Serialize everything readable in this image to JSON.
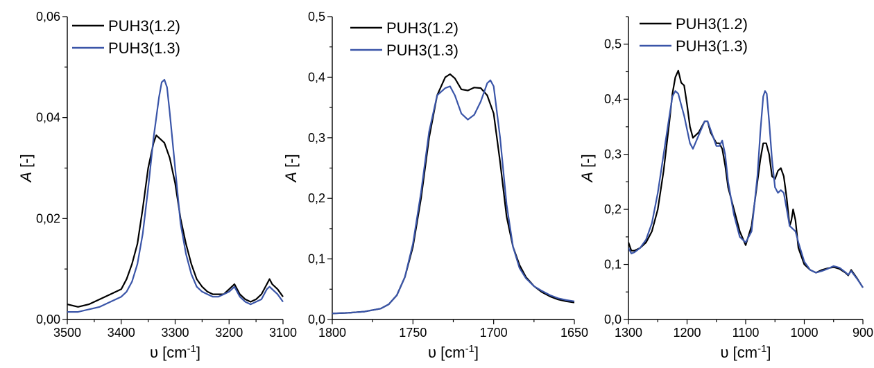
{
  "chart_data": [
    {
      "type": "line",
      "xlabel": "υ [cm⁻¹]",
      "ylabel": "A [-]",
      "xlim": [
        3500,
        3100
      ],
      "ylim": [
        0.0,
        0.06
      ],
      "xticks": [
        3500,
        3400,
        3300,
        3200,
        3100
      ],
      "xtick_labels": [
        "3500",
        "3400",
        "3300",
        "3200",
        "3100"
      ],
      "yticks": [
        0.0,
        0.02,
        0.04,
        0.06
      ],
      "ytick_labels": [
        "0,00",
        "0,02",
        "0,04",
        "0,06"
      ],
      "legend": "top-left",
      "series": [
        {
          "name": "PUH3(1.2)",
          "color": "#000000",
          "x": [
            3500,
            3480,
            3460,
            3440,
            3420,
            3400,
            3390,
            3380,
            3370,
            3360,
            3350,
            3340,
            3335,
            3330,
            3320,
            3310,
            3300,
            3290,
            3280,
            3270,
            3260,
            3250,
            3240,
            3230,
            3220,
            3210,
            3200,
            3190,
            3180,
            3170,
            3160,
            3150,
            3140,
            3130,
            3125,
            3120,
            3110,
            3100
          ],
          "values": [
            0.003,
            0.0025,
            0.003,
            0.004,
            0.005,
            0.006,
            0.008,
            0.011,
            0.015,
            0.022,
            0.03,
            0.035,
            0.0365,
            0.036,
            0.035,
            0.032,
            0.027,
            0.02,
            0.015,
            0.011,
            0.008,
            0.0065,
            0.0055,
            0.005,
            0.005,
            0.005,
            0.006,
            0.007,
            0.005,
            0.004,
            0.0035,
            0.004,
            0.005,
            0.007,
            0.008,
            0.007,
            0.006,
            0.0045
          ]
        },
        {
          "name": "PUH3(1.3)",
          "color": "#3a55a8",
          "x": [
            3500,
            3480,
            3460,
            3440,
            3420,
            3400,
            3390,
            3380,
            3370,
            3360,
            3350,
            3340,
            3330,
            3325,
            3320,
            3315,
            3310,
            3300,
            3290,
            3280,
            3270,
            3260,
            3250,
            3240,
            3230,
            3220,
            3210,
            3200,
            3190,
            3180,
            3170,
            3160,
            3150,
            3140,
            3130,
            3125,
            3120,
            3110,
            3100
          ],
          "values": [
            0.0015,
            0.0015,
            0.002,
            0.0025,
            0.0035,
            0.0045,
            0.0055,
            0.0075,
            0.011,
            0.017,
            0.026,
            0.036,
            0.044,
            0.047,
            0.0475,
            0.046,
            0.041,
            0.03,
            0.019,
            0.013,
            0.009,
            0.0065,
            0.0055,
            0.005,
            0.0045,
            0.0045,
            0.005,
            0.0055,
            0.0065,
            0.0045,
            0.0035,
            0.003,
            0.0035,
            0.004,
            0.006,
            0.0065,
            0.006,
            0.005,
            0.0035
          ]
        }
      ]
    },
    {
      "type": "line",
      "xlabel": "υ [cm⁻¹]",
      "ylabel": "A [-]",
      "xlim": [
        1800,
        1650
      ],
      "ylim": [
        0.0,
        0.5
      ],
      "xticks": [
        1800,
        1750,
        1700,
        1650
      ],
      "xtick_labels": [
        "1800",
        "1750",
        "1700",
        "1650"
      ],
      "yticks": [
        0.0,
        0.1,
        0.2,
        0.3,
        0.4,
        0.5
      ],
      "ytick_labels": [
        "0,0",
        "0,1",
        "0,2",
        "0,3",
        "0,4",
        "0,5"
      ],
      "legend": "top-left",
      "series": [
        {
          "name": "PUH3(1.2)",
          "color": "#000000",
          "x": [
            1800,
            1790,
            1780,
            1770,
            1765,
            1760,
            1755,
            1750,
            1745,
            1740,
            1735,
            1730,
            1727,
            1724,
            1720,
            1716,
            1712,
            1708,
            1704,
            1700,
            1696,
            1692,
            1688,
            1684,
            1680,
            1675,
            1670,
            1665,
            1660,
            1655,
            1650
          ],
          "values": [
            0.01,
            0.011,
            0.013,
            0.018,
            0.025,
            0.04,
            0.07,
            0.12,
            0.2,
            0.3,
            0.37,
            0.4,
            0.405,
            0.398,
            0.38,
            0.378,
            0.383,
            0.382,
            0.37,
            0.34,
            0.26,
            0.17,
            0.12,
            0.09,
            0.07,
            0.055,
            0.045,
            0.038,
            0.033,
            0.03,
            0.028
          ]
        },
        {
          "name": "PUH3(1.3)",
          "color": "#3a55a8",
          "x": [
            1800,
            1790,
            1780,
            1770,
            1765,
            1760,
            1755,
            1750,
            1745,
            1740,
            1735,
            1730,
            1727,
            1724,
            1720,
            1716,
            1712,
            1708,
            1704,
            1702,
            1700,
            1696,
            1692,
            1688,
            1684,
            1680,
            1675,
            1670,
            1665,
            1660,
            1655,
            1650
          ],
          "values": [
            0.01,
            0.011,
            0.013,
            0.018,
            0.025,
            0.04,
            0.07,
            0.125,
            0.21,
            0.31,
            0.37,
            0.382,
            0.385,
            0.37,
            0.34,
            0.33,
            0.338,
            0.36,
            0.39,
            0.395,
            0.385,
            0.3,
            0.19,
            0.12,
            0.085,
            0.068,
            0.055,
            0.047,
            0.04,
            0.035,
            0.032,
            0.03
          ]
        }
      ]
    },
    {
      "type": "line",
      "xlabel": "υ [cm⁻¹]",
      "ylabel": "A [-]",
      "xlim": [
        1300,
        900
      ],
      "ylim": [
        0.0,
        0.55
      ],
      "xticks": [
        1300,
        1200,
        1100,
        1000,
        900
      ],
      "xtick_labels": [
        "1300",
        "1200",
        "1100",
        "1000",
        "900"
      ],
      "yticks": [
        0.0,
        0.1,
        0.2,
        0.3,
        0.4,
        0.5
      ],
      "ytick_labels": [
        "0,0",
        "0,1",
        "0,2",
        "0,3",
        "0,4",
        "0,5"
      ],
      "legend": "top-left",
      "series": [
        {
          "name": "PUH3(1.2)",
          "color": "#000000",
          "x": [
            1300,
            1295,
            1290,
            1280,
            1270,
            1260,
            1250,
            1240,
            1230,
            1225,
            1220,
            1215,
            1210,
            1205,
            1200,
            1195,
            1190,
            1180,
            1170,
            1165,
            1160,
            1150,
            1145,
            1140,
            1135,
            1130,
            1120,
            1110,
            1100,
            1090,
            1080,
            1075,
            1070,
            1065,
            1060,
            1055,
            1050,
            1045,
            1040,
            1035,
            1030,
            1025,
            1022,
            1019,
            1015,
            1010,
            1000,
            990,
            980,
            970,
            960,
            950,
            940,
            930,
            925,
            920,
            910,
            900
          ],
          "values": [
            0.14,
            0.125,
            0.125,
            0.13,
            0.14,
            0.16,
            0.2,
            0.27,
            0.36,
            0.41,
            0.44,
            0.452,
            0.43,
            0.425,
            0.39,
            0.35,
            0.33,
            0.34,
            0.36,
            0.36,
            0.34,
            0.32,
            0.32,
            0.31,
            0.28,
            0.24,
            0.2,
            0.16,
            0.135,
            0.17,
            0.25,
            0.29,
            0.32,
            0.32,
            0.3,
            0.26,
            0.255,
            0.27,
            0.275,
            0.26,
            0.22,
            0.17,
            0.18,
            0.2,
            0.18,
            0.13,
            0.1,
            0.09,
            0.085,
            0.09,
            0.093,
            0.095,
            0.092,
            0.085,
            0.08,
            0.09,
            0.075,
            0.058
          ]
        },
        {
          "name": "PUH3(1.3)",
          "color": "#3a55a8",
          "x": [
            1300,
            1295,
            1290,
            1280,
            1270,
            1260,
            1250,
            1240,
            1230,
            1225,
            1220,
            1215,
            1210,
            1205,
            1200,
            1195,
            1190,
            1180,
            1170,
            1165,
            1160,
            1150,
            1145,
            1140,
            1135,
            1130,
            1120,
            1110,
            1100,
            1090,
            1080,
            1075,
            1070,
            1067,
            1064,
            1060,
            1055,
            1050,
            1045,
            1040,
            1035,
            1030,
            1025,
            1020,
            1015,
            1010,
            1000,
            990,
            980,
            970,
            960,
            950,
            940,
            930,
            925,
            920,
            910,
            900
          ],
          "values": [
            0.13,
            0.12,
            0.122,
            0.13,
            0.145,
            0.175,
            0.23,
            0.3,
            0.37,
            0.405,
            0.415,
            0.41,
            0.39,
            0.37,
            0.345,
            0.32,
            0.31,
            0.335,
            0.36,
            0.36,
            0.345,
            0.315,
            0.315,
            0.325,
            0.3,
            0.25,
            0.19,
            0.15,
            0.14,
            0.16,
            0.26,
            0.34,
            0.405,
            0.415,
            0.41,
            0.36,
            0.29,
            0.24,
            0.23,
            0.235,
            0.23,
            0.2,
            0.17,
            0.165,
            0.16,
            0.14,
            0.105,
            0.09,
            0.085,
            0.088,
            0.092,
            0.097,
            0.094,
            0.086,
            0.081,
            0.088,
            0.074,
            0.058
          ]
        }
      ]
    }
  ]
}
